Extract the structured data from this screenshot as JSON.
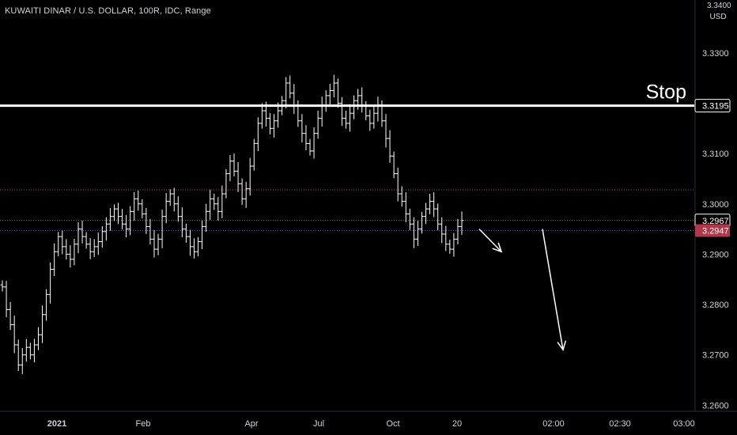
{
  "header": {
    "title": "KUWAITI DINAR / U.S. DOLLAR, 100R, IDC, Range",
    "currency": "USD",
    "currency_top": "3.3400"
  },
  "colors": {
    "background": "#000000",
    "bar": "#ffffff",
    "text": "#d1d4dc",
    "stop_line": "#ffffff",
    "last_price_line": "#787b86",
    "prev_close_line": "#b2374a",
    "bid_line": "#2962ff",
    "marker_badge": "#b2374a"
  },
  "chart_data": {
    "type": "ohlc",
    "symbol": "KUWAITI DINAR / U.S. DOLLAR",
    "interval": "100R",
    "source": "IDC",
    "chart_style": "Range",
    "y_ticks": [
      3.26,
      3.27,
      3.28,
      3.29,
      3.3,
      3.31,
      3.33
    ],
    "y_tick_labels": [
      "3.2600",
      "3.2700",
      "3.2800",
      "3.2900",
      "3.3000",
      "3.3100",
      "3.3300"
    ],
    "ylim": [
      3.2588,
      3.3405
    ],
    "x_labels": [
      {
        "text": "2021",
        "bold": true
      },
      {
        "text": "Feb",
        "bold": false
      },
      {
        "text": "Apr",
        "bold": false
      },
      {
        "text": "Jul",
        "bold": false
      },
      {
        "text": "Oct",
        "bold": false
      },
      {
        "text": "20",
        "bold": false
      },
      {
        "text": "02:00",
        "bold": false
      },
      {
        "text": "02:30",
        "bold": false
      },
      {
        "text": "03:00",
        "bold": false
      }
    ],
    "stop_level": {
      "value": 3.3195,
      "label": "Stop",
      "price_label": "3.3195"
    },
    "last_price": {
      "value": 3.2967,
      "label": "3.2967"
    },
    "marker_price": {
      "value": 3.2947,
      "label": "3.2947"
    },
    "prev_close": {
      "value": 3.3028
    },
    "price_path": [
      3.2835,
      3.279,
      3.276,
      3.272,
      3.268,
      3.27,
      3.2715,
      3.27,
      3.272,
      3.274,
      3.278,
      3.282,
      3.287,
      3.2905,
      3.2935,
      3.2915,
      3.29,
      3.289,
      3.292,
      3.295,
      3.2935,
      3.292,
      3.2905,
      3.2915,
      3.2925,
      3.2945,
      3.296,
      3.2975,
      3.299,
      3.2975,
      3.296,
      3.295,
      3.2985,
      3.301,
      3.3,
      3.298,
      3.2955,
      3.293,
      3.291,
      3.293,
      3.2975,
      3.3005,
      3.302,
      3.3,
      3.2975,
      3.295,
      3.2935,
      3.2915,
      3.2905,
      3.2925,
      3.2955,
      3.2985,
      3.301,
      3.3,
      3.2985,
      3.302,
      3.306,
      3.3085,
      3.3065,
      3.304,
      3.301,
      3.303,
      3.3075,
      3.312,
      3.316,
      3.3185,
      3.317,
      3.315,
      3.3165,
      3.3185,
      3.3205,
      3.324,
      3.322,
      3.3195,
      3.3165,
      3.314,
      3.312,
      3.3105,
      3.314,
      3.317,
      3.3195,
      3.3215,
      3.3225,
      3.324,
      3.32,
      3.317,
      3.316,
      3.318,
      3.3205,
      3.3215,
      3.3195,
      3.3175,
      3.316,
      3.318,
      3.3195,
      3.3165,
      3.313,
      3.3095,
      3.306,
      3.302,
      3.3005,
      3.298,
      3.296,
      3.293,
      3.295,
      3.2975,
      3.299,
      3.3005,
      3.299,
      3.296,
      3.294,
      3.292,
      3.291,
      3.293,
      3.2955,
      3.2967
    ],
    "forecast_arrows": [
      {
        "from": [
          3.295,
          0
        ],
        "to": [
          3.2905,
          4
        ]
      },
      {
        "from": [
          3.295,
          8
        ],
        "to": [
          3.271,
          17
        ]
      }
    ]
  }
}
